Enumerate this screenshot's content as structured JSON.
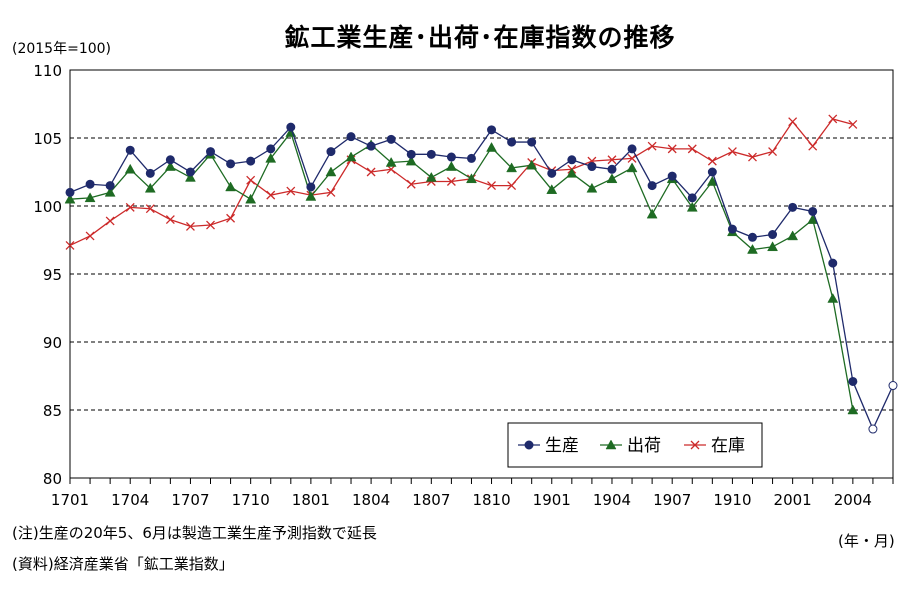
{
  "header": {
    "title": "鉱工業生産･出荷･在庫指数の推移",
    "unit_label": "(2015年=100)"
  },
  "footer": {
    "note": "(注)生産の20年5、6月は製造工業生産予測指数で延長",
    "source": "(資料)経済産業省「鉱工業指数」",
    "x_unit": "(年・月)"
  },
  "chart_data": {
    "type": "line",
    "title": "鉱工業生産･出荷･在庫指数の推移",
    "xlabel": "(年・月)",
    "ylabel": "(2015年=100)",
    "ylim": [
      80,
      110
    ],
    "yticks": [
      "80",
      "85",
      "90",
      "95",
      "100",
      "105",
      "110"
    ],
    "grid": "horizontal-dashed",
    "legend_position": "bottom-right",
    "x": [
      "1701",
      "1702",
      "1703",
      "1704",
      "1705",
      "1706",
      "1707",
      "1708",
      "1709",
      "1710",
      "1711",
      "1712",
      "1801",
      "1802",
      "1803",
      "1804",
      "1805",
      "1806",
      "1807",
      "1808",
      "1809",
      "1810",
      "1811",
      "1812",
      "1901",
      "1902",
      "1903",
      "1904",
      "1905",
      "1906",
      "1907",
      "1908",
      "1909",
      "1910",
      "1911",
      "1912",
      "2001",
      "2002",
      "2003",
      "2004",
      "2005",
      "2006"
    ],
    "xtick_labels": [
      "1701",
      "1704",
      "1707",
      "1710",
      "1801",
      "1804",
      "1807",
      "1810",
      "1901",
      "1904",
      "1907",
      "1910",
      "2001",
      "2004"
    ],
    "series": [
      {
        "name": "生産",
        "color": "#1f2a6b",
        "marker": "circle",
        "values": [
          101.0,
          101.6,
          101.5,
          104.1,
          102.4,
          103.4,
          102.5,
          104.0,
          103.1,
          103.3,
          104.2,
          105.8,
          101.4,
          104.0,
          105.1,
          104.4,
          104.9,
          103.8,
          103.8,
          103.6,
          103.5,
          105.6,
          104.7,
          104.7,
          102.4,
          103.4,
          102.9,
          102.7,
          104.2,
          101.5,
          102.2,
          100.6,
          102.5,
          98.3,
          97.7,
          97.9,
          99.9,
          99.6,
          95.8,
          87.1,
          null,
          null
        ],
        "forecast_values": [
          null,
          null,
          null,
          null,
          null,
          null,
          null,
          null,
          null,
          null,
          null,
          null,
          null,
          null,
          null,
          null,
          null,
          null,
          null,
          null,
          null,
          null,
          null,
          null,
          null,
          null,
          null,
          null,
          null,
          null,
          null,
          null,
          null,
          null,
          null,
          null,
          null,
          null,
          null,
          87.1,
          83.6,
          86.8
        ]
      },
      {
        "name": "出荷",
        "color": "#1e6b23",
        "marker": "triangle",
        "values": [
          100.5,
          100.6,
          101.0,
          102.7,
          101.3,
          102.9,
          102.1,
          103.8,
          101.4,
          100.5,
          103.5,
          105.4,
          100.7,
          102.5,
          103.6,
          104.5,
          103.2,
          103.3,
          102.1,
          102.9,
          102.0,
          104.3,
          102.8,
          103.0,
          101.2,
          102.4,
          101.3,
          102.0,
          102.8,
          99.4,
          102.0,
          99.9,
          101.8,
          98.1,
          96.8,
          97.0,
          97.8,
          99.0,
          93.2,
          85.0,
          null,
          null
        ]
      },
      {
        "name": "在庫",
        "color": "#cc2a2a",
        "marker": "x",
        "values": [
          97.1,
          97.8,
          98.9,
          99.9,
          99.8,
          99.0,
          98.5,
          98.6,
          99.1,
          101.9,
          100.8,
          101.1,
          100.8,
          101.0,
          103.4,
          102.5,
          102.7,
          101.6,
          101.8,
          101.8,
          102.0,
          101.5,
          101.5,
          103.2,
          102.6,
          102.7,
          103.3,
          103.4,
          103.5,
          104.4,
          104.2,
          104.2,
          103.3,
          104.0,
          103.6,
          104.0,
          106.2,
          104.4,
          106.4,
          106.0,
          null,
          null
        ]
      }
    ]
  }
}
